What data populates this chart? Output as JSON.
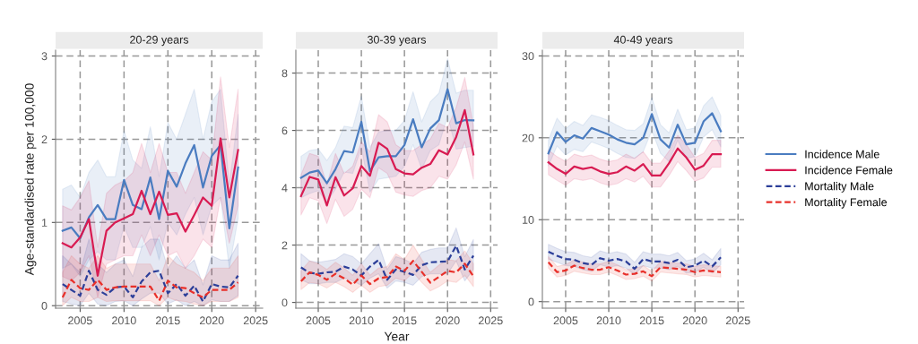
{
  "chart_data": [
    {
      "type": "line",
      "title": "20-29 years",
      "ylabel": "Age-standardised rate per 100,000",
      "grid": true,
      "marker": "none",
      "x": [
        2003,
        2004,
        2005,
        2006,
        2007,
        2008,
        2009,
        2010,
        2011,
        2012,
        2013,
        2014,
        2015,
        2016,
        2017,
        2018,
        2019,
        2020,
        2021,
        2022,
        2023
      ],
      "xlim": [
        2002.2,
        2025.8
      ],
      "xticks": [
        2005,
        2010,
        2015,
        2020,
        2025
      ],
      "ylim": [
        -0.03,
        3.07
      ],
      "yticks": [
        0,
        1,
        2,
        3
      ],
      "series": [
        {
          "color": "#4a7cc0",
          "line_style": "solid",
          "values": [
            0.9,
            0.94,
            0.81,
            1.06,
            1.21,
            1.04,
            1.04,
            1.51,
            1.21,
            1.16,
            1.54,
            1.04,
            1.62,
            1.43,
            1.71,
            1.93,
            1.42,
            1.8,
            1.93,
            0.93,
            1.66
          ],
          "lower": [
            0.45,
            0.5,
            0.35,
            0.55,
            0.65,
            0.55,
            0.55,
            0.95,
            0.7,
            0.7,
            0.95,
            0.55,
            1.0,
            0.85,
            1.1,
            1.3,
            0.85,
            1.2,
            1.3,
            0.45,
            1.05
          ],
          "upper": [
            1.4,
            1.45,
            1.3,
            1.6,
            1.75,
            1.55,
            1.55,
            2.1,
            1.75,
            1.65,
            2.15,
            1.55,
            2.2,
            2.0,
            2.3,
            2.6,
            2.0,
            2.45,
            2.6,
            1.45,
            2.3
          ]
        },
        {
          "color": "#d81b52",
          "line_style": "solid",
          "values": [
            0.75,
            0.7,
            0.82,
            1.04,
            0.36,
            0.9,
            1.0,
            1.05,
            1.1,
            1.38,
            1.1,
            1.37,
            1.09,
            1.11,
            0.89,
            1.09,
            1.3,
            1.2,
            2.01,
            1.3,
            1.87
          ],
          "lower": [
            0.35,
            0.3,
            0.4,
            0.6,
            0.1,
            0.5,
            0.55,
            0.6,
            0.6,
            0.85,
            0.6,
            0.85,
            0.6,
            0.65,
            0.45,
            0.6,
            0.8,
            0.7,
            1.3,
            0.75,
            1.2
          ],
          "upper": [
            1.2,
            1.15,
            1.3,
            1.5,
            0.7,
            1.35,
            1.45,
            1.5,
            1.6,
            1.95,
            1.6,
            1.95,
            1.6,
            1.6,
            1.35,
            1.6,
            1.85,
            1.75,
            2.75,
            1.9,
            2.6
          ]
        },
        {
          "color": "#2c3f99",
          "line_style": "dashed",
          "values": [
            0.26,
            0.19,
            0.12,
            0.42,
            0.19,
            0.13,
            0.22,
            0.23,
            0.1,
            0.29,
            0.4,
            0.42,
            0.15,
            0.26,
            0.12,
            0.24,
            0.05,
            0.26,
            0.23,
            0.22,
            0.36
          ],
          "lower": [
            0.05,
            0.02,
            0.0,
            0.15,
            0.02,
            0.0,
            0.05,
            0.06,
            0.0,
            0.08,
            0.15,
            0.15,
            0.02,
            0.07,
            0.0,
            0.05,
            0.0,
            0.07,
            0.05,
            0.05,
            0.12
          ],
          "upper": [
            0.6,
            0.5,
            0.4,
            0.8,
            0.5,
            0.4,
            0.5,
            0.55,
            0.35,
            0.7,
            0.8,
            0.8,
            0.45,
            0.6,
            0.45,
            0.55,
            0.25,
            0.6,
            0.55,
            0.55,
            0.75
          ]
        },
        {
          "color": "#e8302a",
          "line_style": "dashed",
          "values": [
            0.1,
            0.31,
            0.21,
            0.19,
            0.31,
            0.19,
            0.22,
            0.23,
            0.23,
            0.23,
            0.23,
            0.06,
            0.3,
            0.22,
            0.21,
            0.15,
            0.1,
            0.19,
            0.19,
            0.19,
            0.28
          ],
          "lower": [
            0.0,
            0.1,
            0.05,
            0.05,
            0.1,
            0.05,
            0.06,
            0.06,
            0.06,
            0.06,
            0.06,
            0.0,
            0.1,
            0.06,
            0.05,
            0.02,
            0.0,
            0.05,
            0.05,
            0.05,
            0.1
          ],
          "upper": [
            0.4,
            0.6,
            0.5,
            0.45,
            0.6,
            0.45,
            0.5,
            0.5,
            0.5,
            0.5,
            0.5,
            0.3,
            0.6,
            0.5,
            0.45,
            0.4,
            0.3,
            0.45,
            0.45,
            0.45,
            0.6
          ]
        }
      ]
    },
    {
      "type": "line",
      "title": "30-39 years",
      "xlabel": "Year",
      "grid": true,
      "marker": "none",
      "x": [
        2003,
        2004,
        2005,
        2006,
        2007,
        2008,
        2009,
        2010,
        2011,
        2012,
        2013,
        2014,
        2015,
        2016,
        2017,
        2018,
        2019,
        2020,
        2021,
        2022,
        2023
      ],
      "xlim": [
        2002.4,
        2025.8
      ],
      "xticks": [
        2005,
        2010,
        2015,
        2020,
        2025
      ],
      "ylim": [
        -0.2,
        8.8
      ],
      "yticks": [
        0,
        2,
        4,
        6,
        8
      ],
      "series": [
        {
          "color": "#4a7cc0",
          "line_style": "solid",
          "values": [
            4.35,
            4.53,
            4.6,
            4.16,
            4.65,
            5.28,
            5.23,
            6.3,
            4.58,
            5.06,
            5.1,
            5.1,
            5.49,
            6.39,
            5.41,
            6.07,
            6.36,
            7.44,
            6.25,
            6.36,
            6.35
          ],
          "lower": [
            3.65,
            3.8,
            3.9,
            3.5,
            3.95,
            4.55,
            4.5,
            5.4,
            3.85,
            4.3,
            4.35,
            4.4,
            4.75,
            5.5,
            4.65,
            5.3,
            5.5,
            6.5,
            5.35,
            5.4,
            5.45
          ],
          "upper": [
            5.1,
            5.3,
            5.35,
            4.95,
            5.4,
            6.15,
            6.1,
            7.2,
            5.4,
            5.95,
            6.0,
            6.0,
            6.35,
            7.35,
            6.3,
            7.0,
            7.3,
            8.5,
            7.3,
            7.4,
            7.4
          ]
        },
        {
          "color": "#d81b52",
          "line_style": "solid",
          "values": [
            3.71,
            4.38,
            4.29,
            3.38,
            4.37,
            3.73,
            3.98,
            4.76,
            4.42,
            5.57,
            5.36,
            4.65,
            4.5,
            4.47,
            4.7,
            4.83,
            5.31,
            5.16,
            5.77,
            6.71,
            5.16
          ],
          "lower": [
            3.05,
            3.65,
            3.55,
            2.75,
            3.6,
            3.0,
            3.25,
            3.95,
            3.65,
            4.7,
            4.5,
            3.85,
            3.75,
            3.7,
            3.9,
            4.0,
            4.4,
            4.3,
            4.8,
            5.6,
            4.3
          ],
          "upper": [
            4.45,
            5.2,
            5.1,
            4.1,
            5.2,
            4.5,
            4.75,
            5.6,
            5.25,
            6.55,
            6.3,
            5.5,
            5.3,
            5.3,
            5.5,
            5.7,
            6.25,
            6.1,
            6.8,
            7.85,
            6.15
          ]
        },
        {
          "color": "#2c3f99",
          "line_style": "dashed",
          "values": [
            1.22,
            1.03,
            1.0,
            1.05,
            1.07,
            1.25,
            1.15,
            0.94,
            1.25,
            1.48,
            0.79,
            1.15,
            1.07,
            0.96,
            1.3,
            1.4,
            1.42,
            1.43,
            1.98,
            1.15,
            1.63
          ],
          "lower": [
            0.8,
            0.65,
            0.65,
            0.7,
            0.7,
            0.85,
            0.75,
            0.6,
            0.85,
            1.0,
            0.5,
            0.75,
            0.7,
            0.6,
            0.9,
            1.0,
            1.0,
            1.0,
            1.45,
            0.75,
            1.15
          ],
          "upper": [
            1.7,
            1.45,
            1.4,
            1.45,
            1.5,
            1.7,
            1.6,
            1.35,
            1.7,
            2.05,
            1.15,
            1.6,
            1.5,
            1.35,
            1.75,
            1.85,
            1.9,
            1.9,
            2.6,
            1.6,
            2.2
          ]
        },
        {
          "color": "#e8302a",
          "line_style": "dashed",
          "values": [
            0.74,
            1.05,
            0.96,
            0.79,
            1.0,
            0.84,
            0.62,
            0.94,
            0.64,
            0.84,
            0.89,
            1.25,
            1.1,
            1.45,
            1.07,
            0.69,
            0.89,
            1.1,
            1.05,
            1.35,
            0.91
          ],
          "lower": [
            0.45,
            0.7,
            0.65,
            0.5,
            0.7,
            0.55,
            0.35,
            0.6,
            0.35,
            0.55,
            0.6,
            0.85,
            0.75,
            1.05,
            0.7,
            0.4,
            0.55,
            0.75,
            0.7,
            0.95,
            0.55
          ],
          "upper": [
            1.1,
            1.45,
            1.35,
            1.15,
            1.4,
            1.2,
            0.95,
            1.35,
            0.95,
            1.2,
            1.25,
            1.7,
            1.5,
            2.0,
            1.5,
            1.05,
            1.3,
            1.5,
            1.45,
            1.8,
            1.35
          ]
        }
      ]
    },
    {
      "type": "line",
      "title": "40-49 years",
      "grid": true,
      "marker": "none",
      "legend": "right",
      "x": [
        2003,
        2004,
        2005,
        2006,
        2007,
        2008,
        2009,
        2010,
        2011,
        2012,
        2013,
        2014,
        2015,
        2016,
        2017,
        2018,
        2019,
        2020,
        2021,
        2022,
        2023
      ],
      "xlim": [
        2002.3,
        2025.7
      ],
      "xticks": [
        2005,
        2010,
        2015,
        2020,
        2025
      ],
      "ylim": [
        -0.8,
        30.7
      ],
      "yticks": [
        0,
        10,
        20,
        30
      ],
      "series": [
        {
          "name": "Incidence Male",
          "color": "#4a7cc0",
          "line_style": "solid",
          "values": [
            18.1,
            20.7,
            19.5,
            20.3,
            19.9,
            21.2,
            20.8,
            20.4,
            19.8,
            19.4,
            19.2,
            20.0,
            22.9,
            19.8,
            18.8,
            21.6,
            19.2,
            19.4,
            22.0,
            23.0,
            20.8
          ],
          "lower": [
            16.6,
            19.0,
            17.9,
            18.6,
            18.3,
            19.5,
            19.1,
            18.7,
            18.1,
            17.6,
            17.5,
            18.3,
            20.9,
            18.1,
            17.1,
            19.7,
            17.5,
            17.7,
            20.1,
            21.0,
            18.9
          ],
          "upper": [
            19.7,
            22.4,
            21.1,
            22.0,
            21.5,
            22.8,
            22.5,
            22.1,
            21.5,
            21.0,
            20.9,
            21.7,
            24.9,
            21.6,
            20.6,
            23.5,
            21.0,
            21.2,
            23.9,
            25.0,
            22.7
          ]
        },
        {
          "name": "Incidence Female",
          "color": "#d81b52",
          "line_style": "solid",
          "values": [
            17.0,
            16.2,
            15.6,
            16.5,
            16.2,
            16.4,
            15.9,
            15.6,
            15.8,
            16.5,
            16.0,
            16.8,
            15.4,
            15.4,
            16.9,
            18.7,
            17.6,
            16.1,
            16.6,
            18.0,
            18.0
          ],
          "lower": [
            15.5,
            14.8,
            14.2,
            15.0,
            14.8,
            15.0,
            14.5,
            14.2,
            14.4,
            15.0,
            14.6,
            15.3,
            14.0,
            14.0,
            15.4,
            17.1,
            16.0,
            14.7,
            15.1,
            16.4,
            16.4
          ],
          "upper": [
            18.5,
            17.7,
            17.1,
            18.0,
            17.7,
            17.9,
            17.4,
            17.1,
            17.3,
            18.0,
            17.5,
            18.3,
            16.9,
            16.9,
            18.4,
            20.3,
            19.2,
            17.6,
            18.1,
            19.7,
            19.7
          ]
        },
        {
          "name": "Mortality Male",
          "color": "#2c3f99",
          "line_style": "dashed",
          "values": [
            6.1,
            5.6,
            5.2,
            5.1,
            4.7,
            4.5,
            5.3,
            5.0,
            5.2,
            4.9,
            4.0,
            5.2,
            4.9,
            4.9,
            4.7,
            5.1,
            4.2,
            4.4,
            5.0,
            4.3,
            5.4
          ],
          "lower": [
            5.2,
            4.8,
            4.4,
            4.3,
            3.9,
            3.7,
            4.5,
            4.2,
            4.4,
            4.1,
            3.3,
            4.4,
            4.1,
            4.1,
            3.9,
            4.3,
            3.5,
            3.6,
            4.2,
            3.5,
            4.5
          ],
          "upper": [
            7.0,
            6.5,
            6.1,
            6.0,
            5.6,
            5.4,
            6.2,
            5.9,
            6.1,
            5.8,
            4.8,
            6.1,
            5.8,
            5.8,
            5.6,
            6.0,
            5.0,
            5.2,
            5.9,
            5.1,
            6.5
          ]
        },
        {
          "name": "Mortality Female",
          "color": "#e8302a",
          "line_style": "dashed",
          "values": [
            4.8,
            3.6,
            3.8,
            4.4,
            4.1,
            3.9,
            3.9,
            4.2,
            3.8,
            3.3,
            3.4,
            3.7,
            3.1,
            4.2,
            4.1,
            4.0,
            3.9,
            3.6,
            3.8,
            3.7,
            3.6
          ],
          "lower": [
            4.1,
            3.0,
            3.2,
            3.7,
            3.5,
            3.3,
            3.3,
            3.6,
            3.2,
            2.7,
            2.8,
            3.1,
            2.5,
            3.6,
            3.5,
            3.4,
            3.3,
            3.0,
            3.2,
            3.1,
            3.0
          ],
          "upper": [
            5.5,
            4.3,
            4.5,
            5.1,
            4.8,
            4.6,
            4.6,
            4.9,
            4.5,
            3.9,
            4.0,
            4.4,
            3.7,
            4.9,
            4.8,
            4.7,
            4.6,
            4.3,
            4.5,
            4.4,
            4.3
          ]
        }
      ]
    }
  ]
}
